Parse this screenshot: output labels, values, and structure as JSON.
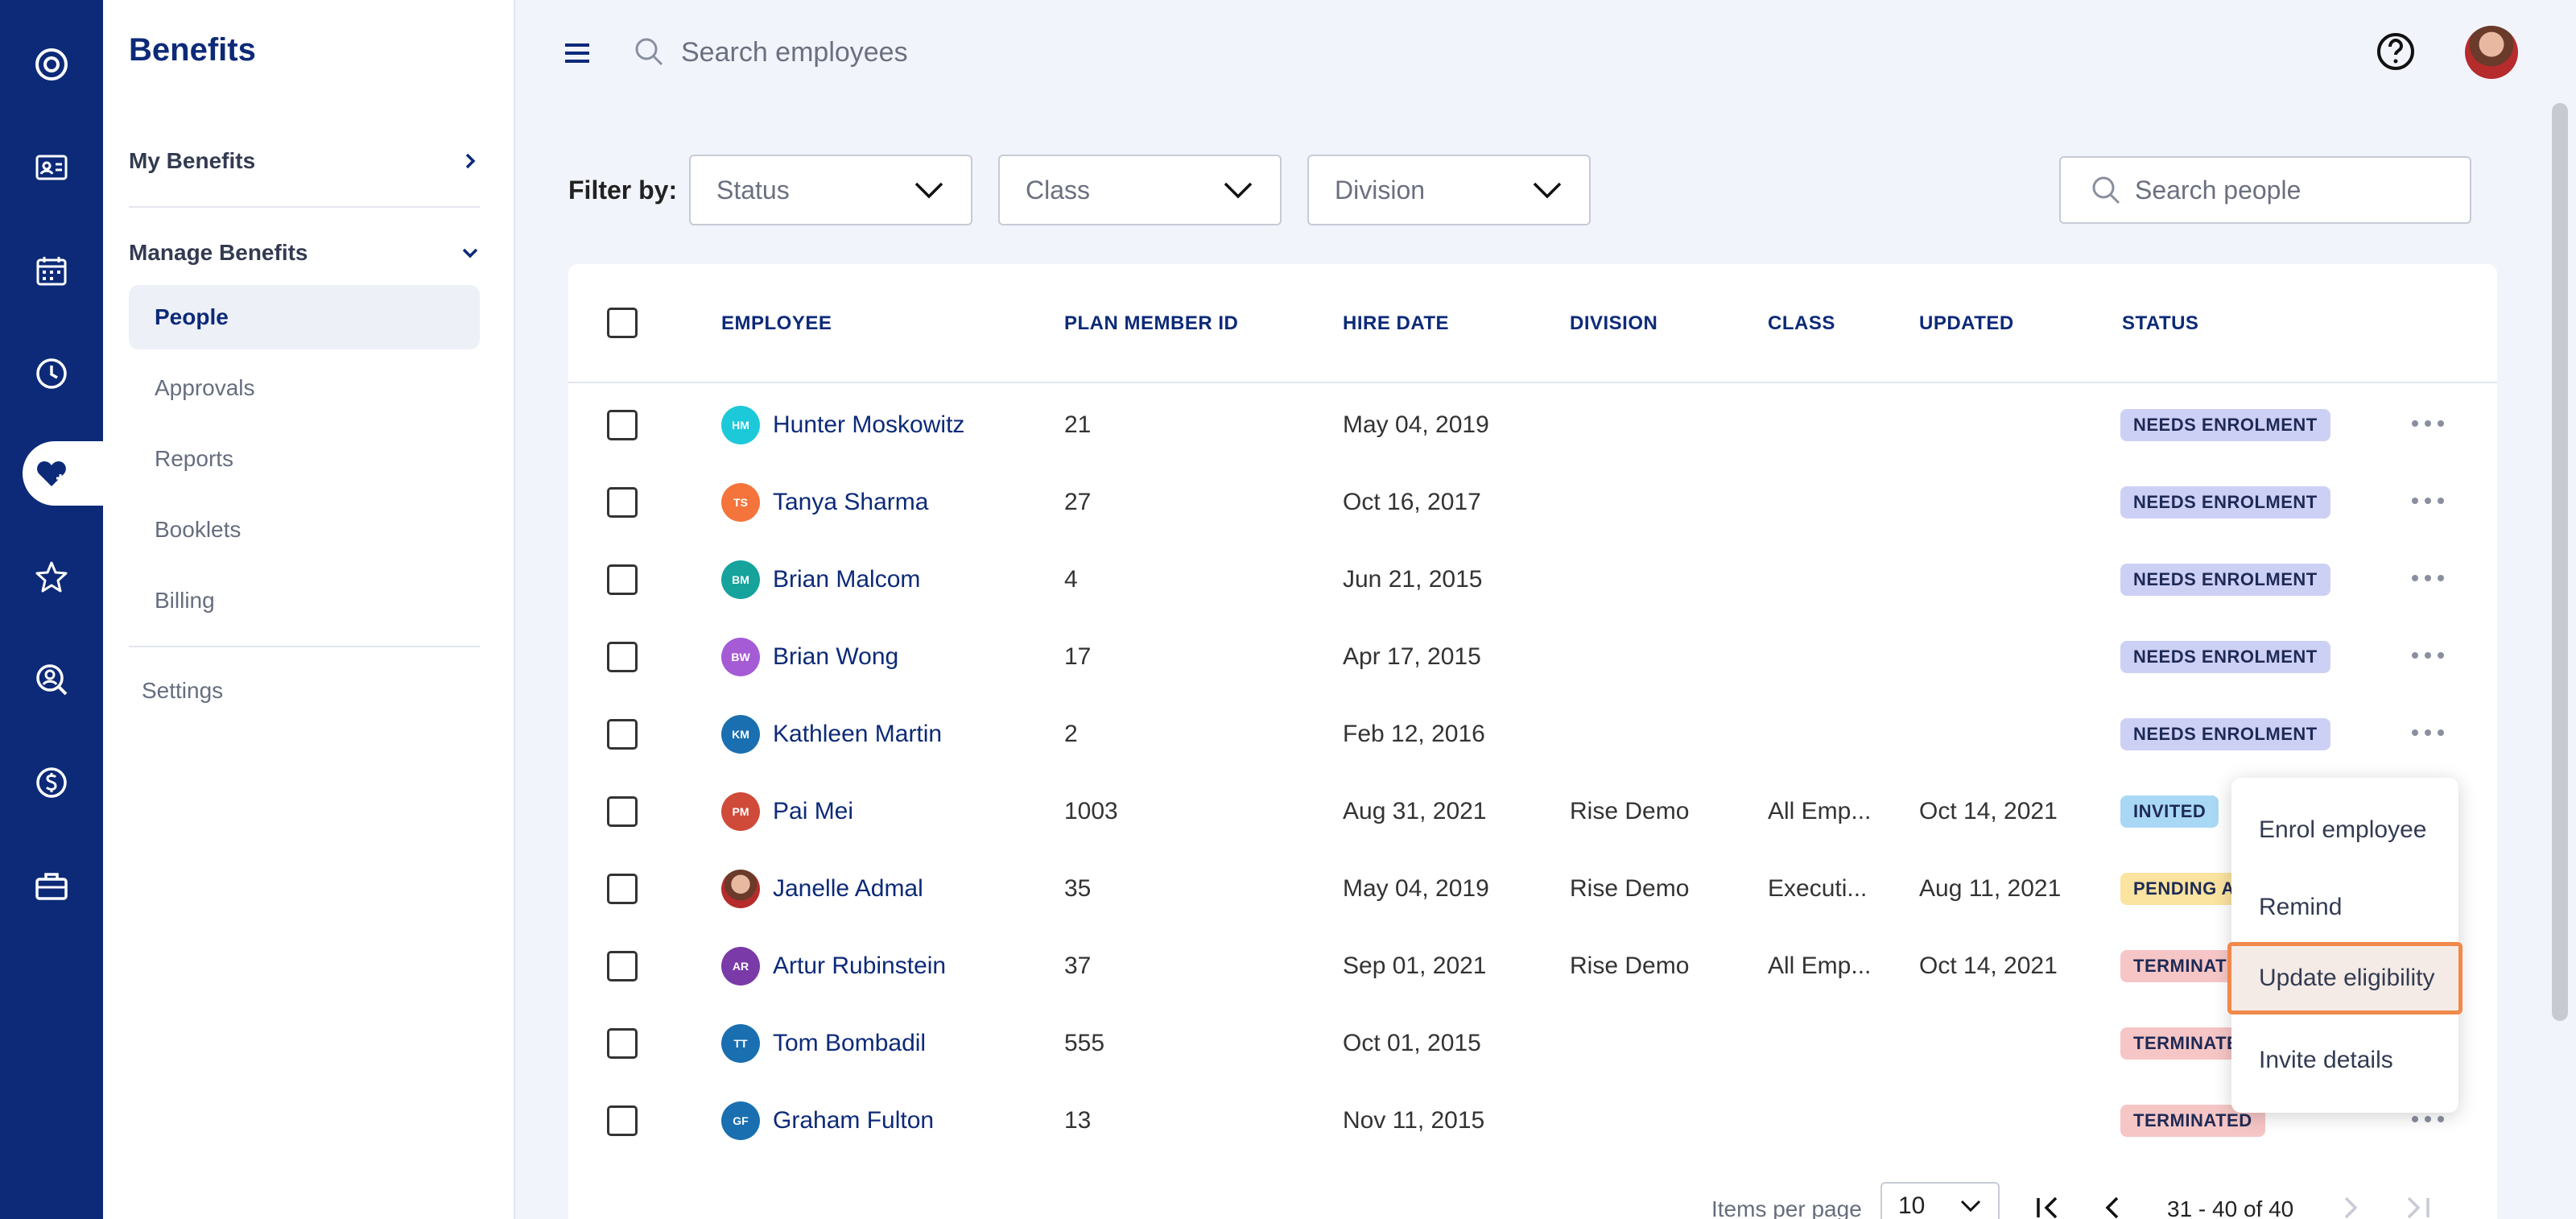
{
  "sidebar": {
    "title": "Benefits",
    "my_benefits": "My Benefits",
    "manage_benefits": "Manage Benefits",
    "items": [
      {
        "label": "People",
        "active": true
      },
      {
        "label": "Approvals"
      },
      {
        "label": "Reports"
      },
      {
        "label": "Booklets"
      },
      {
        "label": "Billing"
      }
    ],
    "settings": "Settings"
  },
  "rail": {
    "icons": [
      "logo-icon",
      "id-card-icon",
      "calendar-icon",
      "clock-icon",
      "heart-benefits-icon",
      "star-icon",
      "person-search-icon",
      "dollar-icon",
      "briefcase-icon"
    ],
    "active_color": "#0c2a78"
  },
  "topbar": {
    "search_placeholder": "Search employees"
  },
  "filters": {
    "label": "Filter by:",
    "status": "Status",
    "class": "Class",
    "division": "Division",
    "search_placeholder": "Search people"
  },
  "table": {
    "columns": [
      "EMPLOYEE",
      "PLAN MEMBER ID",
      "HIRE DATE",
      "DIVISION",
      "CLASS",
      "UPDATED",
      "STATUS"
    ],
    "rows": [
      {
        "initials": "HM",
        "color": "#1cc9d8",
        "name": "Hunter Moskowitz",
        "id": "21",
        "hire": "May 04, 2019",
        "division": "",
        "class": "",
        "updated": "",
        "status": "NEEDS ENROLMENT",
        "status_color": "#cdd0f5"
      },
      {
        "initials": "TS",
        "color": "#f4743b",
        "name": "Tanya Sharma",
        "id": "27",
        "hire": "Oct 16, 2017",
        "division": "",
        "class": "",
        "updated": "",
        "status": "NEEDS ENROLMENT",
        "status_color": "#cdd0f5"
      },
      {
        "initials": "BM",
        "color": "#15a39c",
        "name": "Brian Malcom",
        "id": "4",
        "hire": "Jun 21, 2015",
        "division": "",
        "class": "",
        "updated": "",
        "status": "NEEDS ENROLMENT",
        "status_color": "#cdd0f5"
      },
      {
        "initials": "BW",
        "color": "#a55bd6",
        "name": "Brian Wong",
        "id": "17",
        "hire": "Apr 17, 2015",
        "division": "",
        "class": "",
        "updated": "",
        "status": "NEEDS ENROLMENT",
        "status_color": "#cdd0f5"
      },
      {
        "initials": "KM",
        "color": "#1a6fb0",
        "name": "Kathleen Martin",
        "id": "2",
        "hire": "Feb 12, 2016",
        "division": "",
        "class": "",
        "updated": "",
        "status": "NEEDS ENROLMENT",
        "status_color": "#cdd0f5"
      },
      {
        "initials": "PM",
        "color": "#d04a3a",
        "name": "Pai Mei",
        "id": "1003",
        "hire": "Aug 31, 2021",
        "division": "Rise Demo",
        "class": "All Emp...",
        "updated": "Oct 14, 2021",
        "status": "INVITED",
        "status_color": "#a9d8f5"
      },
      {
        "initials": "",
        "color": "#7a3a2a",
        "photo": true,
        "name": "Janelle Admal",
        "id": "35",
        "hire": "May 04, 2019",
        "division": "Rise Demo",
        "class": "Executi...",
        "updated": "Aug 11, 2021",
        "status": "PENDING A",
        "status_color": "#fbe3a0"
      },
      {
        "initials": "AR",
        "color": "#7a3aa8",
        "name": "Artur Rubinstein",
        "id": "37",
        "hire": "Sep 01, 2021",
        "division": "Rise Demo",
        "class": "All Emp...",
        "updated": "Oct 14, 2021",
        "status": "TERMINAT",
        "status_color": "#f6c6c6"
      },
      {
        "initials": "TT",
        "color": "#1a6fb0",
        "name": "Tom Bombadil",
        "id": "555",
        "hire": "Oct 01, 2015",
        "division": "",
        "class": "",
        "updated": "",
        "status": "TERMINATE",
        "status_color": "#f6c6c6"
      },
      {
        "initials": "GF",
        "color": "#1a6fb0",
        "name": "Graham Fulton",
        "id": "13",
        "hire": "Nov 11, 2015",
        "division": "",
        "class": "",
        "updated": "",
        "status": "TERMINATED",
        "status_color": "#f6c6c6"
      }
    ]
  },
  "context_menu": {
    "items": [
      "Enrol employee",
      "Remind",
      "Update eligibility",
      "Invite details"
    ],
    "highlighted": "Update eligibility"
  },
  "pagination": {
    "items_per_page_label": "Items per page",
    "items_per_page": "10",
    "range": "31 - 40 of 40"
  }
}
